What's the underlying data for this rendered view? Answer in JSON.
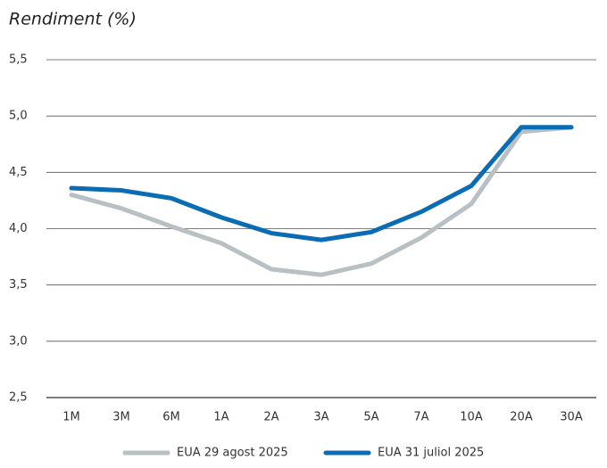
{
  "chart_data": {
    "type": "line",
    "title": "Rendiment (%)",
    "categories": [
      "1M",
      "3M",
      "6M",
      "1A",
      "2A",
      "3A",
      "5A",
      "7A",
      "10A",
      "20A",
      "30A"
    ],
    "series": [
      {
        "name": "EUA 29 agost 2025",
        "color": "#b8c0c4",
        "values": [
          4.3,
          4.18,
          4.02,
          3.87,
          3.64,
          3.59,
          3.69,
          3.92,
          4.22,
          4.86,
          4.9
        ]
      },
      {
        "name": "EUA 31 juliol 2025",
        "color": "#0a6db3",
        "values": [
          4.36,
          4.34,
          4.27,
          4.1,
          3.96,
          3.9,
          3.97,
          4.15,
          4.38,
          4.9,
          4.9
        ]
      }
    ],
    "ylim": [
      2.5,
      5.5
    ],
    "yticks": [
      {
        "value": 2.5,
        "label": "2,5"
      },
      {
        "value": 3,
        "label": "3,0"
      },
      {
        "value": 3.5,
        "label": "3,5"
      },
      {
        "value": 4,
        "label": "4,0"
      },
      {
        "value": 4.5,
        "label": "4,5"
      },
      {
        "value": 5,
        "label": "5,0"
      },
      {
        "value": 5.5,
        "label": "5,5"
      }
    ],
    "grid": true,
    "legend": "bottom"
  }
}
